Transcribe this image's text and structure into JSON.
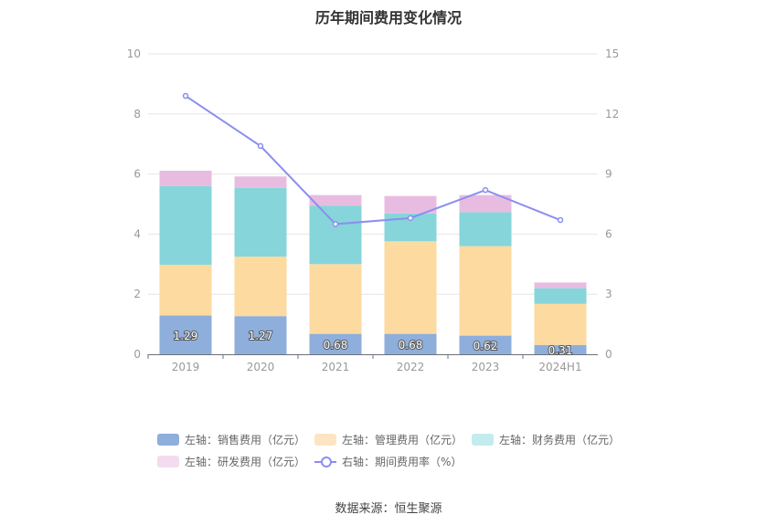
{
  "chart_data": {
    "type": "bar",
    "stacked": true,
    "title": "历年期间费用变化情况",
    "categories": [
      "2019",
      "2020",
      "2021",
      "2022",
      "2023",
      "2024H1"
    ],
    "y_left": {
      "min": 0,
      "max": 10,
      "ticks": [
        "0",
        "2",
        "4",
        "6",
        "8",
        "10"
      ]
    },
    "y_right": {
      "min": 0,
      "max": 15,
      "ticks": [
        "0",
        "3",
        "6",
        "9",
        "12",
        "15"
      ]
    },
    "grid": true,
    "legend_position": "bottom",
    "series": [
      {
        "name": "左轴：销售费用（亿元）",
        "type": "bar",
        "axis": "left",
        "color": "#8eaedc",
        "values": [
          1.29,
          1.27,
          0.68,
          0.68,
          0.62,
          0.31
        ],
        "labels": [
          "1.29",
          "1.27",
          "0.68",
          "0.68",
          "0.62",
          "0.31"
        ]
      },
      {
        "name": "左轴：管理费用（亿元）",
        "type": "bar",
        "axis": "left",
        "color": "#fddaa0",
        "values": [
          1.69,
          1.98,
          2.32,
          3.08,
          2.98,
          1.37
        ]
      },
      {
        "name": "左轴：财务费用（亿元）",
        "type": "bar",
        "axis": "left",
        "color": "#86d5da",
        "values": [
          2.62,
          2.29,
          1.95,
          0.93,
          1.13,
          0.52
        ]
      },
      {
        "name": "左轴：研发费用（亿元）",
        "type": "bar",
        "axis": "left",
        "color": "#e8bce0",
        "values": [
          0.51,
          0.38,
          0.35,
          0.58,
          0.57,
          0.19
        ]
      },
      {
        "name": "右轴：期间费用率（%）",
        "type": "line",
        "axis": "right",
        "color": "#8c8ef0",
        "values": [
          12.9,
          10.4,
          6.5,
          6.8,
          8.2,
          6.7
        ]
      }
    ]
  },
  "legend": {
    "items": [
      {
        "label": "左轴：销售费用（亿元）",
        "color": "#8eaedc",
        "kind": "bar"
      },
      {
        "label": "左轴：管理费用（亿元）",
        "color": "#fde5c3",
        "kind": "bar"
      },
      {
        "label": "左轴：财务费用（亿元）",
        "color": "#c3ecee",
        "kind": "bar"
      },
      {
        "label": "左轴：研发费用（亿元）",
        "color": "#f3dcef",
        "kind": "bar"
      },
      {
        "label": "右轴：期间费用率（%）",
        "color": "#8c8ef0",
        "kind": "line"
      }
    ]
  },
  "source": "数据来源：恒生聚源"
}
